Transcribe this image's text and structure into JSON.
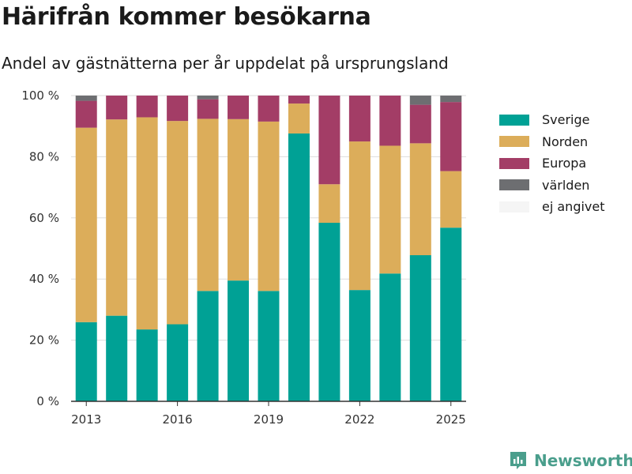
{
  "header": {
    "title": "Härifrån kommer besökarna",
    "subtitle": "Andel av gästnätterna per år uppdelat på ursprungsland"
  },
  "brand": {
    "name": "Newsworthy",
    "color": "#4a9e8c",
    "icon": "newsworthy-logo-icon"
  },
  "chart_data": {
    "type": "bar",
    "stacked": true,
    "categories": [
      "2013",
      "2014",
      "2015",
      "2016",
      "2017",
      "2018",
      "2019",
      "2020",
      "2021",
      "2022",
      "2023",
      "2024",
      "2025"
    ],
    "x_tick_labels": [
      "2013",
      "2016",
      "2019",
      "2022",
      "2025"
    ],
    "y_tick_labels": [
      "0 %",
      "20 %",
      "40 %",
      "60 %",
      "80 %",
      "100 %"
    ],
    "ylim": [
      0,
      100
    ],
    "y_ticks": [
      0,
      20,
      40,
      60,
      80,
      100
    ],
    "grid": true,
    "legend_position": "right",
    "series": [
      {
        "name": "Sverige",
        "color": "#00a195",
        "values": [
          25.9,
          28.0,
          23.5,
          25.2,
          36.1,
          39.5,
          36.1,
          87.6,
          58.4,
          36.4,
          41.8,
          47.8,
          56.8
        ]
      },
      {
        "name": "Norden",
        "color": "#dcad5a",
        "values": [
          63.6,
          64.2,
          69.4,
          66.5,
          56.3,
          52.8,
          55.4,
          9.8,
          12.6,
          48.6,
          41.8,
          36.6,
          18.5
        ]
      },
      {
        "name": "Europa",
        "color": "#a33d66",
        "values": [
          8.8,
          7.8,
          7.1,
          8.3,
          6.4,
          7.7,
          8.5,
          2.6,
          29.0,
          15.0,
          16.4,
          12.6,
          22.6
        ]
      },
      {
        "name": "världen",
        "color": "#6d6e71",
        "values": [
          1.7,
          0.0,
          0.0,
          0.0,
          1.2,
          0.0,
          0.0,
          0.0,
          0.0,
          0.0,
          0.0,
          3.0,
          2.1
        ]
      },
      {
        "name": "ej angivet",
        "color": "#f5f5f5",
        "values": [
          0,
          0,
          0,
          0,
          0,
          0,
          0,
          0,
          0,
          0,
          0,
          0,
          0
        ]
      }
    ]
  }
}
